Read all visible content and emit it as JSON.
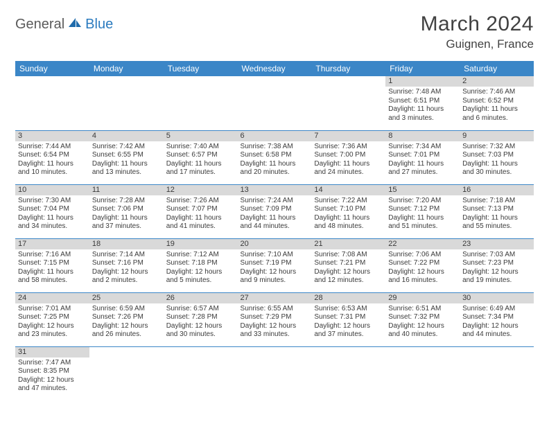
{
  "brand": {
    "part1": "General",
    "part2": "Blue"
  },
  "title": "March 2024",
  "location": "Guignen, France",
  "colors": {
    "header_bg": "#3b86c7",
    "header_text": "#ffffff",
    "daynum_bg": "#d9d9d9",
    "text": "#3a3a3a",
    "rule": "#3b86c7",
    "brand_gray": "#5a5a5a",
    "brand_blue": "#2b7bbf"
  },
  "weekdays": [
    "Sunday",
    "Monday",
    "Tuesday",
    "Wednesday",
    "Thursday",
    "Friday",
    "Saturday"
  ],
  "weeks": [
    [
      null,
      null,
      null,
      null,
      null,
      {
        "n": "1",
        "sr": "7:48 AM",
        "ss": "6:51 PM",
        "dl": "11 hours and 3 minutes."
      },
      {
        "n": "2",
        "sr": "7:46 AM",
        "ss": "6:52 PM",
        "dl": "11 hours and 6 minutes."
      }
    ],
    [
      {
        "n": "3",
        "sr": "7:44 AM",
        "ss": "6:54 PM",
        "dl": "11 hours and 10 minutes."
      },
      {
        "n": "4",
        "sr": "7:42 AM",
        "ss": "6:55 PM",
        "dl": "11 hours and 13 minutes."
      },
      {
        "n": "5",
        "sr": "7:40 AM",
        "ss": "6:57 PM",
        "dl": "11 hours and 17 minutes."
      },
      {
        "n": "6",
        "sr": "7:38 AM",
        "ss": "6:58 PM",
        "dl": "11 hours and 20 minutes."
      },
      {
        "n": "7",
        "sr": "7:36 AM",
        "ss": "7:00 PM",
        "dl": "11 hours and 24 minutes."
      },
      {
        "n": "8",
        "sr": "7:34 AM",
        "ss": "7:01 PM",
        "dl": "11 hours and 27 minutes."
      },
      {
        "n": "9",
        "sr": "7:32 AM",
        "ss": "7:03 PM",
        "dl": "11 hours and 30 minutes."
      }
    ],
    [
      {
        "n": "10",
        "sr": "7:30 AM",
        "ss": "7:04 PM",
        "dl": "11 hours and 34 minutes."
      },
      {
        "n": "11",
        "sr": "7:28 AM",
        "ss": "7:06 PM",
        "dl": "11 hours and 37 minutes."
      },
      {
        "n": "12",
        "sr": "7:26 AM",
        "ss": "7:07 PM",
        "dl": "11 hours and 41 minutes."
      },
      {
        "n": "13",
        "sr": "7:24 AM",
        "ss": "7:09 PM",
        "dl": "11 hours and 44 minutes."
      },
      {
        "n": "14",
        "sr": "7:22 AM",
        "ss": "7:10 PM",
        "dl": "11 hours and 48 minutes."
      },
      {
        "n": "15",
        "sr": "7:20 AM",
        "ss": "7:12 PM",
        "dl": "11 hours and 51 minutes."
      },
      {
        "n": "16",
        "sr": "7:18 AM",
        "ss": "7:13 PM",
        "dl": "11 hours and 55 minutes."
      }
    ],
    [
      {
        "n": "17",
        "sr": "7:16 AM",
        "ss": "7:15 PM",
        "dl": "11 hours and 58 minutes."
      },
      {
        "n": "18",
        "sr": "7:14 AM",
        "ss": "7:16 PM",
        "dl": "12 hours and 2 minutes."
      },
      {
        "n": "19",
        "sr": "7:12 AM",
        "ss": "7:18 PM",
        "dl": "12 hours and 5 minutes."
      },
      {
        "n": "20",
        "sr": "7:10 AM",
        "ss": "7:19 PM",
        "dl": "12 hours and 9 minutes."
      },
      {
        "n": "21",
        "sr": "7:08 AM",
        "ss": "7:21 PM",
        "dl": "12 hours and 12 minutes."
      },
      {
        "n": "22",
        "sr": "7:06 AM",
        "ss": "7:22 PM",
        "dl": "12 hours and 16 minutes."
      },
      {
        "n": "23",
        "sr": "7:03 AM",
        "ss": "7:23 PM",
        "dl": "12 hours and 19 minutes."
      }
    ],
    [
      {
        "n": "24",
        "sr": "7:01 AM",
        "ss": "7:25 PM",
        "dl": "12 hours and 23 minutes."
      },
      {
        "n": "25",
        "sr": "6:59 AM",
        "ss": "7:26 PM",
        "dl": "12 hours and 26 minutes."
      },
      {
        "n": "26",
        "sr": "6:57 AM",
        "ss": "7:28 PM",
        "dl": "12 hours and 30 minutes."
      },
      {
        "n": "27",
        "sr": "6:55 AM",
        "ss": "7:29 PM",
        "dl": "12 hours and 33 minutes."
      },
      {
        "n": "28",
        "sr": "6:53 AM",
        "ss": "7:31 PM",
        "dl": "12 hours and 37 minutes."
      },
      {
        "n": "29",
        "sr": "6:51 AM",
        "ss": "7:32 PM",
        "dl": "12 hours and 40 minutes."
      },
      {
        "n": "30",
        "sr": "6:49 AM",
        "ss": "7:34 PM",
        "dl": "12 hours and 44 minutes."
      }
    ],
    [
      {
        "n": "31",
        "sr": "7:47 AM",
        "ss": "8:35 PM",
        "dl": "12 hours and 47 minutes."
      },
      null,
      null,
      null,
      null,
      null,
      null
    ]
  ],
  "labels": {
    "sunrise": "Sunrise:",
    "sunset": "Sunset:",
    "daylight": "Daylight:"
  }
}
